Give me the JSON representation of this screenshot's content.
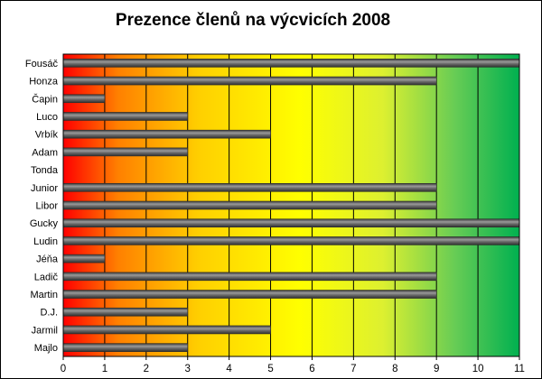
{
  "chart_data": {
    "type": "bar",
    "orientation": "horizontal",
    "title": "Prezence členů na výcvicích 2008",
    "categories": [
      "Fousáč",
      "Honza",
      "Čapin",
      "Luco",
      "Vrbík",
      "Adam",
      "Tonda",
      "Junior",
      "Libor",
      "Gucky",
      "Ludin",
      "Jéňa",
      "Ladič",
      "Martin",
      "D.J.",
      "Jarmil",
      "Majlo"
    ],
    "values": [
      11,
      9,
      1,
      3,
      5,
      3,
      0,
      9,
      9,
      11,
      11,
      1,
      9,
      9,
      3,
      5,
      3
    ],
    "x_ticks": [
      "0",
      "1",
      "2",
      "3",
      "4",
      "5",
      "6",
      "7",
      "8",
      "9",
      "10",
      "11"
    ],
    "xlim": [
      0,
      11
    ],
    "grid": "vertical",
    "legend": "none",
    "colors": {
      "bar": "#595959",
      "gradient": [
        "#ff0000",
        "#ff9900",
        "#ffee00",
        "#ffff00",
        "#ccee22",
        "#55cc55",
        "#00aa55"
      ]
    }
  }
}
